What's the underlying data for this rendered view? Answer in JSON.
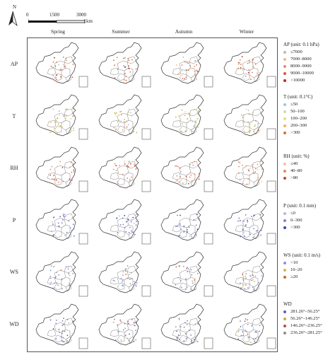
{
  "scale": {
    "unit": "km",
    "ticks": [
      "0",
      "1500",
      "3000"
    ]
  },
  "compass": {
    "label": "N"
  },
  "seasons": [
    "Spring",
    "Summer",
    "Autumn",
    "Winter"
  ],
  "variables": [
    {
      "key": "AP",
      "label": "AP",
      "legend_title": "AP (unit: 0.1 hPa)",
      "classes": [
        {
          "label": "≤7000",
          "color": "#b9b9b9"
        },
        {
          "label": "7000–8000",
          "color": "#f3b78a"
        },
        {
          "label": "8000–9000",
          "color": "#e88b62"
        },
        {
          "label": "9000–10000",
          "color": "#d9583c"
        },
        {
          "label": ">10000",
          "color": "#b22f22"
        }
      ],
      "panel_color": "#d47a5c"
    },
    {
      "key": "T",
      "label": "T",
      "legend_title": "T (unit: 0.1°C)",
      "classes": [
        {
          "label": "≤50",
          "color": "#9ec3e6"
        },
        {
          "label": "50–100",
          "color": "#c9dfa4"
        },
        {
          "label": "100–200",
          "color": "#e6e079"
        },
        {
          "label": "200–300",
          "color": "#f2b35a"
        },
        {
          "label": ">300",
          "color": "#e06a3d"
        }
      ],
      "panel_color": "#c9b35a"
    },
    {
      "key": "RH",
      "label": "RH",
      "legend_title": "RH (unit: %)",
      "classes": [
        {
          "label": "≤40",
          "color": "#f1c2a2"
        },
        {
          "label": "40–80",
          "color": "#e8885f"
        },
        {
          "label": ">80",
          "color": "#c7452e"
        }
      ],
      "panel_color": "#e08a6a"
    },
    {
      "key": "P",
      "label": "P",
      "legend_title": "P (unit: 0.1 mm)",
      "classes": [
        {
          "label": "≤0",
          "color": "#b7b7d8"
        },
        {
          "label": "0–300",
          "color": "#7f85c7"
        },
        {
          "label": ">300",
          "color": "#3d47a8"
        }
      ],
      "panel_color": "#6f78c0"
    },
    {
      "key": "WS",
      "label": "WS",
      "legend_title": "WS (unit: 0.1 m/s)",
      "classes": [
        {
          "label": "<10",
          "color": "#8f92c9"
        },
        {
          "label": "10–20",
          "color": "#d9b14f"
        },
        {
          "label": "≥20",
          "color": "#c56a34"
        }
      ],
      "panel_color": "#8f92c9"
    },
    {
      "key": "WD",
      "label": "WD",
      "legend_title": "WD",
      "classes": [
        {
          "label": "281.26°–56.25°",
          "color": "#5a62b8"
        },
        {
          "label": "56.26°–146.25°",
          "color": "#d9a24a"
        },
        {
          "label": "146.26°–236.25°",
          "color": "#c04a3a"
        },
        {
          "label": "236.26°–281.25°",
          "color": "#8c8c8c"
        }
      ],
      "panel_color": "#7a7fbf"
    }
  ]
}
